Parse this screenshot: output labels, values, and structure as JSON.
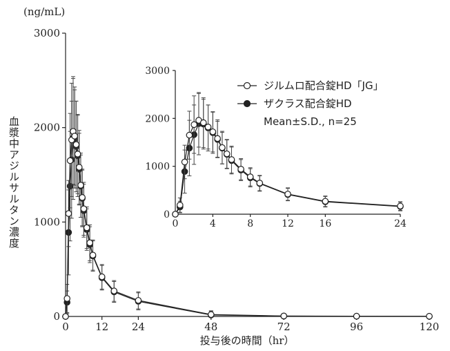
{
  "chart_data": {
    "type": "line",
    "unit_label": "(ng/mL)",
    "xlabel": "投与後の時間（hr）",
    "ylabel": "血漿中アジルサルタン濃度",
    "main": {
      "xlim": [
        0,
        120
      ],
      "ylim": [
        0,
        3000
      ],
      "xticks": [
        0,
        12,
        24,
        48,
        72,
        96,
        120
      ],
      "yticks": [
        0,
        1000,
        2000,
        3000
      ]
    },
    "inset": {
      "xlim": [
        0,
        24
      ],
      "ylim": [
        0,
        3000
      ],
      "xticks": [
        0,
        4,
        8,
        12,
        16,
        24
      ],
      "yticks": [
        0,
        1000,
        2000,
        3000
      ]
    },
    "legend": {
      "position": "top-right of inset",
      "note": "Mean±S.D., n=25"
    },
    "series": [
      {
        "name": "ジルムロ配合錠HD「JG」",
        "marker": "open-circle",
        "x": [
          0,
          0.5,
          1,
          1.5,
          2,
          2.5,
          3,
          3.5,
          4,
          4.5,
          5,
          5.5,
          6,
          7,
          8,
          9,
          12,
          16,
          24,
          48,
          72,
          96,
          120
        ],
        "y": [
          0,
          190,
          1090,
          1650,
          1870,
          1960,
          1910,
          1820,
          1720,
          1580,
          1390,
          1260,
          1140,
          940,
          780,
          650,
          420,
          270,
          170,
          20,
          5,
          3,
          2
        ],
        "sd": [
          0,
          150,
          350,
          500,
          600,
          560,
          520,
          460,
          420,
          390,
          340,
          300,
          280,
          220,
          190,
          160,
          130,
          110,
          90,
          40,
          0,
          0,
          0
        ]
      },
      {
        "name": "ザクラス配合錠HD",
        "marker": "filled-circle",
        "x": [
          0,
          0.5,
          1,
          1.5,
          2,
          2.5,
          3,
          3.5,
          4,
          4.5,
          5,
          5.5,
          6,
          7,
          8,
          9,
          12,
          16,
          24,
          48,
          72,
          96,
          120
        ],
        "y": [
          0,
          150,
          890,
          1380,
          1660,
          1890,
          1880,
          1800,
          1700,
          1560,
          1380,
          1250,
          1120,
          920,
          760,
          640,
          410,
          260,
          160,
          15,
          4,
          2,
          1
        ],
        "sd": [
          0,
          120,
          450,
          580,
          620,
          650,
          520,
          480,
          430,
          380,
          330,
          300,
          280,
          220,
          190,
          160,
          130,
          110,
          90,
          40,
          0,
          0,
          0
        ]
      }
    ]
  }
}
